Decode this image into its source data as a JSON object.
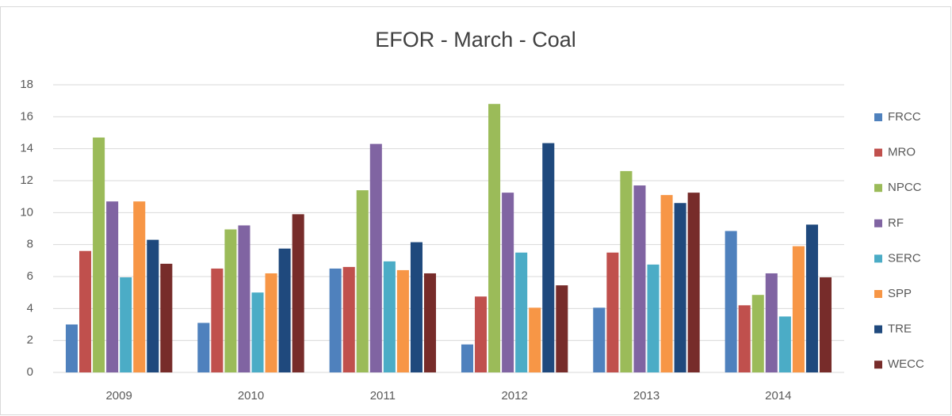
{
  "chart_data": {
    "type": "bar",
    "title": "EFOR - March - Coal",
    "categories": [
      "2009",
      "2010",
      "2011",
      "2012",
      "2013",
      "2014"
    ],
    "series": [
      {
        "name": "FRCC",
        "color": "#4f81bd",
        "values": [
          3.0,
          3.1,
          6.5,
          1.75,
          4.05,
          8.85
        ]
      },
      {
        "name": "MRO",
        "color": "#c0504d",
        "values": [
          7.6,
          6.5,
          6.6,
          4.75,
          7.5,
          4.2
        ]
      },
      {
        "name": "NPCC",
        "color": "#9bbb59",
        "values": [
          14.7,
          8.95,
          11.4,
          16.8,
          12.6,
          4.85
        ]
      },
      {
        "name": "RF",
        "color": "#8064a2",
        "values": [
          10.7,
          9.2,
          14.3,
          11.25,
          11.7,
          6.2
        ]
      },
      {
        "name": "SERC",
        "color": "#4bacc6",
        "values": [
          5.95,
          5.0,
          6.95,
          7.5,
          6.75,
          3.5
        ]
      },
      {
        "name": "SPP",
        "color": "#f79646",
        "values": [
          10.7,
          6.2,
          6.4,
          4.05,
          11.1,
          7.9
        ]
      },
      {
        "name": "TRE",
        "color": "#1f497d",
        "values": [
          8.3,
          7.75,
          8.15,
          14.35,
          10.6,
          9.25
        ]
      },
      {
        "name": "WECC",
        "color": "#772c2a",
        "values": [
          6.8,
          9.9,
          6.2,
          5.45,
          11.25,
          5.95
        ]
      }
    ],
    "ylim": [
      0,
      18
    ],
    "yticks": [
      0,
      2,
      4,
      6,
      8,
      10,
      12,
      14,
      16,
      18
    ],
    "grid": true,
    "legend": "right"
  }
}
